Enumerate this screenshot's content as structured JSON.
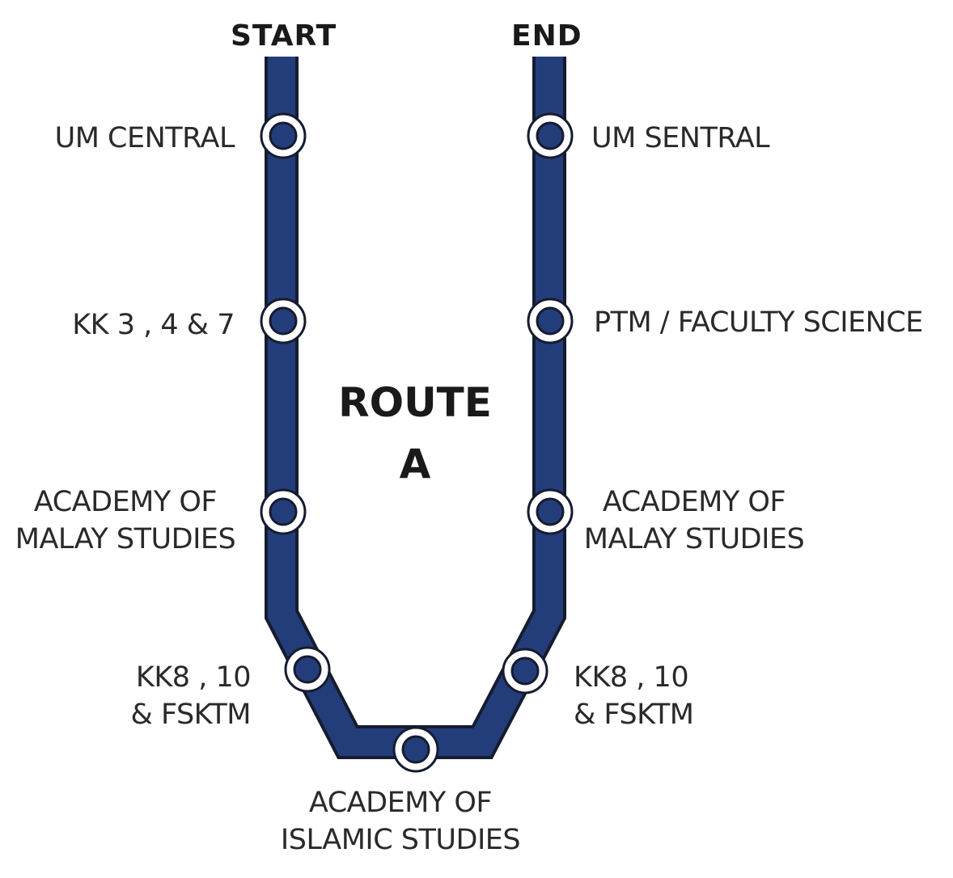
{
  "header": {
    "start_label": "START",
    "end_label": "END"
  },
  "title": {
    "line1": "ROUTE",
    "line2": "A"
  },
  "colors": {
    "route_line": "#233d7b",
    "route_outline": "#161c2e",
    "stop_ring": "#ffffff"
  },
  "stops": {
    "left": [
      {
        "lines": [
          "UM CENTRAL"
        ]
      },
      {
        "lines": [
          "KK 3 , 4 & 7"
        ]
      },
      {
        "lines": [
          "ACADEMY OF",
          "MALAY STUDIES"
        ]
      },
      {
        "lines": [
          "KK8 , 10",
          "& FSKTM"
        ]
      }
    ],
    "bottom": {
      "lines": [
        "ACADEMY OF",
        "ISLAMIC STUDIES"
      ]
    },
    "right": [
      {
        "lines": [
          "UM SENTRAL"
        ]
      },
      {
        "lines": [
          "PTM / FACULTY SCIENCE"
        ]
      },
      {
        "lines": [
          "ACADEMY OF",
          "MALAY STUDIES"
        ]
      },
      {
        "lines": [
          "KK8 , 10",
          "& FSKTM"
        ]
      }
    ]
  }
}
